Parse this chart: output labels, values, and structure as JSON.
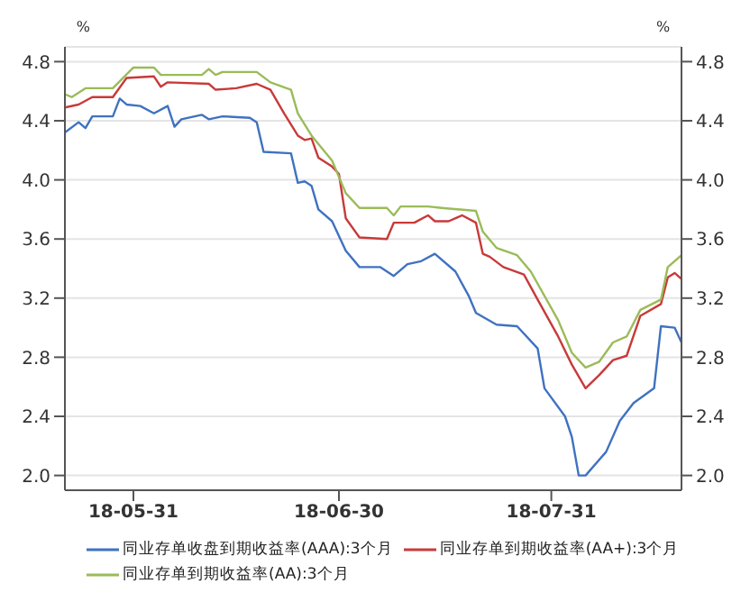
{
  "chart_data": {
    "type": "line",
    "ylabel": "%",
    "y2label": "%",
    "xlim": [
      "--05-21",
      "--08-19"
    ],
    "xticks": [
      {
        "value": "--05-31",
        "label": "18-05-31"
      },
      {
        "value": "--06-30",
        "label": "18-06-30"
      },
      {
        "value": "--07-31",
        "label": "18-07-31"
      }
    ],
    "ylim": [
      1.9,
      4.9
    ],
    "yticks": [
      {
        "value": 2,
        "label": "2.0"
      },
      2.4,
      2.8,
      3.2,
      3.6,
      {
        "value": 4,
        "label": "4.0"
      },
      4.4,
      4.8
    ],
    "y2lim": [
      1.9,
      4.9
    ],
    "y2ticks": [
      {
        "value": 2,
        "label": "2.0"
      },
      2.4,
      2.8,
      3.2,
      3.6,
      {
        "value": 4,
        "label": "4.0"
      },
      4.4,
      4.8
    ],
    "grid": "y",
    "legend": "bottom",
    "marker": "none",
    "line_style": "solid",
    "series": [
      {
        "name": "同业存单收盘到期收益率(AAA):3个月",
        "color": "#3f72c0",
        "x": [
          "--05-21",
          "--05-23",
          "--05-24",
          "--05-25",
          "--05-28",
          "--05-29",
          "--05-30",
          "--06-01",
          "--06-03",
          "--06-05",
          "--06-06",
          "--06-07",
          "--06-10",
          "--06-11",
          "--06-13",
          "--06-17",
          "--06-18",
          "--06-19",
          "--06-23",
          "--06-24",
          "--06-25",
          "--06-26",
          "--06-27",
          "--06-29",
          "--07-01",
          "--07-03",
          "--07-06",
          "--07-08",
          "--07-10",
          "--07-12",
          "--07-14",
          "--07-17",
          "--07-19",
          "--07-20",
          "--07-23",
          "--07-26",
          "--07-29",
          "--07-30",
          "--08-02",
          "--08-03",
          "--08-04",
          "--08-05",
          "--08-08",
          "--08-10",
          "--08-12",
          "--08-15",
          "--08-16",
          "--08-18",
          "--08-19"
        ],
        "values": [
          4.32,
          4.39,
          4.35,
          4.43,
          4.43,
          4.55,
          4.51,
          4.5,
          4.45,
          4.5,
          4.36,
          4.41,
          4.44,
          4.41,
          4.43,
          4.42,
          4.39,
          4.19,
          4.18,
          3.98,
          3.99,
          3.96,
          3.8,
          3.72,
          3.52,
          3.41,
          3.41,
          3.35,
          3.43,
          3.45,
          3.5,
          3.38,
          3.21,
          3.1,
          3.02,
          3.01,
          2.86,
          2.59,
          2.4,
          2.26,
          2.0,
          2.0,
          2.16,
          2.37,
          2.49,
          2.59,
          3.01,
          3.0,
          2.9
        ]
      },
      {
        "name": "同业存单到期收益率(AA+):3个月",
        "color": "#c83a3a",
        "x": [
          "--05-21",
          "--05-23",
          "--05-25",
          "--05-28",
          "--05-30",
          "--06-03",
          "--06-04",
          "--06-05",
          "--06-11",
          "--06-12",
          "--06-15",
          "--06-18",
          "--06-20",
          "--06-22",
          "--06-24",
          "--06-25",
          "--06-26",
          "--06-27",
          "--06-29",
          "--06-30",
          "--07-01",
          "--07-03",
          "--07-07",
          "--07-08",
          "--07-11",
          "--07-13",
          "--07-14",
          "--07-16",
          "--07-18",
          "--07-20",
          "--07-21",
          "--07-22",
          "--07-24",
          "--07-27",
          "--07-29",
          "--08-01",
          "--08-03",
          "--08-05",
          "--08-07",
          "--08-09",
          "--08-11",
          "--08-13",
          "--08-16",
          "--08-17",
          "--08-18",
          "--08-19"
        ],
        "values": [
          4.49,
          4.51,
          4.56,
          4.56,
          4.69,
          4.7,
          4.63,
          4.66,
          4.65,
          4.61,
          4.62,
          4.65,
          4.61,
          4.45,
          4.3,
          4.27,
          4.28,
          4.15,
          4.09,
          4.04,
          3.74,
          3.61,
          3.6,
          3.71,
          3.71,
          3.76,
          3.72,
          3.72,
          3.76,
          3.71,
          3.5,
          3.48,
          3.41,
          3.36,
          3.19,
          2.94,
          2.75,
          2.59,
          2.68,
          2.78,
          2.81,
          3.08,
          3.16,
          3.34,
          3.37,
          3.33
        ]
      },
      {
        "name": "同业存单到期收益率(AA):3个月",
        "color": "#9bbb59",
        "x": [
          "--05-21",
          "--05-22",
          "--05-24",
          "--05-28",
          "--05-31",
          "--06-03",
          "--06-04",
          "--06-08",
          "--06-10",
          "--06-11",
          "--06-12",
          "--06-13",
          "--06-18",
          "--06-20",
          "--06-23",
          "--06-24",
          "--06-26",
          "--06-29",
          "--07-01",
          "--07-03",
          "--07-07",
          "--07-08",
          "--07-09",
          "--07-13",
          "--07-15",
          "--07-20",
          "--07-21",
          "--07-23",
          "--07-26",
          "--07-28",
          "--08-01",
          "--08-03",
          "--08-05",
          "--08-07",
          "--08-09",
          "--08-11",
          "--08-13",
          "--08-16",
          "--08-17",
          "--08-19"
        ],
        "values": [
          4.58,
          4.56,
          4.62,
          4.62,
          4.76,
          4.76,
          4.71,
          4.71,
          4.71,
          4.75,
          4.71,
          4.73,
          4.73,
          4.66,
          4.61,
          4.45,
          4.3,
          4.13,
          3.91,
          3.81,
          3.81,
          3.76,
          3.82,
          3.82,
          3.81,
          3.79,
          3.65,
          3.54,
          3.49,
          3.38,
          3.05,
          2.83,
          2.73,
          2.77,
          2.9,
          2.94,
          3.12,
          3.19,
          3.41,
          3.49
        ]
      }
    ]
  }
}
